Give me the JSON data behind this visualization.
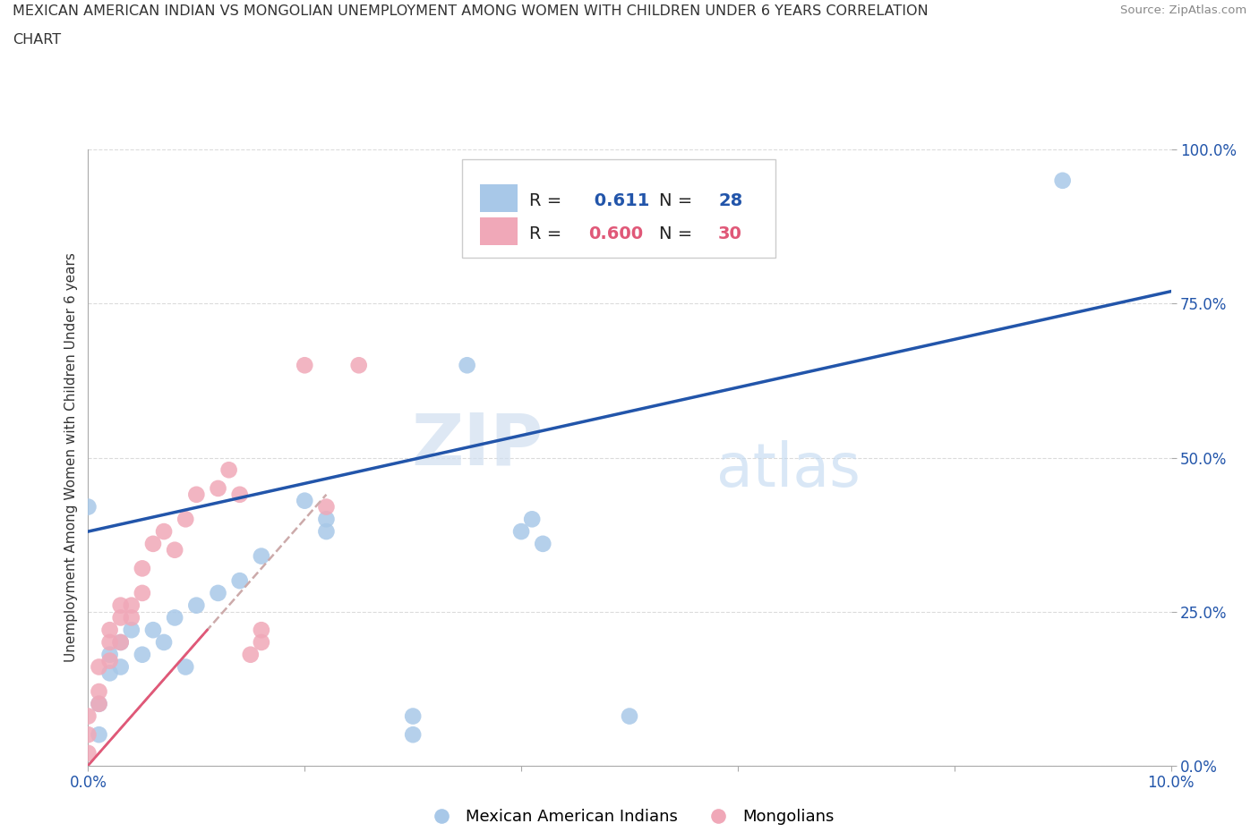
{
  "title_line1": "MEXICAN AMERICAN INDIAN VS MONGOLIAN UNEMPLOYMENT AMONG WOMEN WITH CHILDREN UNDER 6 YEARS CORRELATION",
  "title_line2": "CHART",
  "source": "Source: ZipAtlas.com",
  "ylabel": "Unemployment Among Women with Children Under 6 years",
  "xlim": [
    0.0,
    0.1
  ],
  "ylim": [
    0.0,
    1.0
  ],
  "yticks": [
    0.0,
    0.25,
    0.5,
    0.75,
    1.0
  ],
  "ytick_labels": [
    "0.0%",
    "25.0%",
    "50.0%",
    "75.0%",
    "100.0%"
  ],
  "xticks": [
    0.0,
    0.02,
    0.04,
    0.06,
    0.08,
    0.1
  ],
  "xtick_labels": [
    "0.0%",
    "",
    "",
    "",
    "",
    "10.0%"
  ],
  "blue_R": "0.611",
  "blue_N": "28",
  "pink_R": "0.600",
  "pink_N": "30",
  "legend_label_blue": "Mexican American Indians",
  "legend_label_pink": "Mongolians",
  "watermark_zip": "ZIP",
  "watermark_atlas": "atlas",
  "blue_scatter_x": [
    0.0,
    0.001,
    0.001,
    0.002,
    0.002,
    0.003,
    0.003,
    0.004,
    0.005,
    0.006,
    0.007,
    0.008,
    0.009,
    0.01,
    0.012,
    0.014,
    0.016,
    0.02,
    0.022,
    0.022,
    0.03,
    0.03,
    0.035,
    0.04,
    0.041,
    0.042,
    0.05,
    0.09
  ],
  "blue_scatter_y": [
    0.42,
    0.05,
    0.1,
    0.15,
    0.18,
    0.2,
    0.16,
    0.22,
    0.18,
    0.22,
    0.2,
    0.24,
    0.16,
    0.26,
    0.28,
    0.3,
    0.34,
    0.43,
    0.38,
    0.4,
    0.05,
    0.08,
    0.65,
    0.38,
    0.4,
    0.36,
    0.08,
    0.95
  ],
  "pink_scatter_x": [
    0.0,
    0.0,
    0.0,
    0.001,
    0.001,
    0.001,
    0.002,
    0.002,
    0.002,
    0.003,
    0.003,
    0.003,
    0.004,
    0.004,
    0.005,
    0.005,
    0.006,
    0.007,
    0.008,
    0.009,
    0.01,
    0.012,
    0.013,
    0.014,
    0.015,
    0.016,
    0.016,
    0.02,
    0.022,
    0.025
  ],
  "pink_scatter_y": [
    0.02,
    0.05,
    0.08,
    0.1,
    0.12,
    0.16,
    0.17,
    0.2,
    0.22,
    0.2,
    0.24,
    0.26,
    0.24,
    0.26,
    0.28,
    0.32,
    0.36,
    0.38,
    0.35,
    0.4,
    0.44,
    0.45,
    0.48,
    0.44,
    0.18,
    0.2,
    0.22,
    0.65,
    0.42,
    0.65
  ],
  "blue_line_x0": 0.0,
  "blue_line_y0": 0.38,
  "blue_line_x1": 0.1,
  "blue_line_y1": 0.77,
  "pink_line_x0": 0.0,
  "pink_line_y0": 0.0,
  "pink_line_x1": 0.022,
  "pink_line_y1": 0.44,
  "blue_color": "#A8C8E8",
  "pink_color": "#F0A8B8",
  "blue_line_color": "#2255AA",
  "pink_line_color": "#E05878",
  "pink_dash_color": "#CCAAAA",
  "grid_color": "#CCCCCC",
  "background_color": "#FFFFFF"
}
